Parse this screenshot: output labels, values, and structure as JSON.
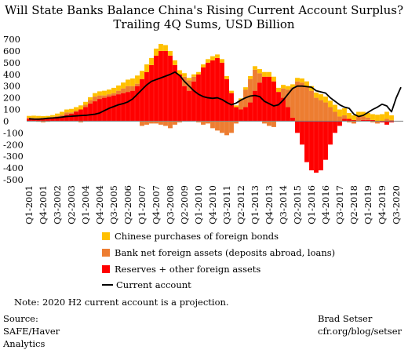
{
  "chart_data": {
    "type": "bar",
    "title": "Will State Banks Balance China's Rising Current Account Surplus?",
    "subtitle": "Trailing 4Q Sums, USD Billion",
    "ylim": [
      -500,
      700
    ],
    "yticks": [
      700,
      600,
      500,
      400,
      300,
      200,
      100,
      0,
      -100,
      -200,
      -300,
      -400,
      -500
    ],
    "xtick_labels": [
      "Q1-2001",
      "Q4-2001",
      "Q3-2002",
      "Q2-2003",
      "Q1-2004",
      "Q4-2004",
      "Q3-2005",
      "Q2-2006",
      "Q1-2007",
      "Q4-2007",
      "Q3-2008",
      "Q2-2009",
      "Q1-2010",
      "Q4-2010",
      "Q3-2011",
      "Q2-2012",
      "Q1-2013",
      "Q4-2013",
      "Q3-2014",
      "Q2-2015",
      "Q1-2016",
      "Q4-2016",
      "Q3-2017",
      "Q2-2018",
      "Q1-2019",
      "Q4-2019",
      "Q3-2020"
    ],
    "categories": [
      "Q1-2001",
      "Q2-2001",
      "Q3-2001",
      "Q4-2001",
      "Q1-2002",
      "Q2-2002",
      "Q3-2002",
      "Q4-2002",
      "Q1-2003",
      "Q2-2003",
      "Q3-2003",
      "Q4-2003",
      "Q1-2004",
      "Q2-2004",
      "Q3-2004",
      "Q4-2004",
      "Q1-2005",
      "Q2-2005",
      "Q3-2005",
      "Q4-2005",
      "Q1-2006",
      "Q2-2006",
      "Q3-2006",
      "Q4-2006",
      "Q1-2007",
      "Q2-2007",
      "Q3-2007",
      "Q4-2007",
      "Q1-2008",
      "Q2-2008",
      "Q3-2008",
      "Q4-2008",
      "Q1-2009",
      "Q2-2009",
      "Q3-2009",
      "Q4-2009",
      "Q1-2010",
      "Q2-2010",
      "Q3-2010",
      "Q4-2010",
      "Q1-2011",
      "Q2-2011",
      "Q3-2011",
      "Q4-2011",
      "Q1-2012",
      "Q2-2012",
      "Q3-2012",
      "Q4-2012",
      "Q1-2013",
      "Q2-2013",
      "Q3-2013",
      "Q4-2013",
      "Q1-2014",
      "Q2-2014",
      "Q3-2014",
      "Q4-2014",
      "Q1-2015",
      "Q2-2015",
      "Q3-2015",
      "Q4-2015",
      "Q1-2016",
      "Q2-2016",
      "Q3-2016",
      "Q4-2016",
      "Q1-2017",
      "Q2-2017",
      "Q3-2017",
      "Q4-2017",
      "Q1-2018",
      "Q2-2018",
      "Q3-2018",
      "Q4-2018",
      "Q1-2019",
      "Q2-2019",
      "Q3-2019",
      "Q4-2019",
      "Q1-2020",
      "Q2-2020",
      "Q3-2020",
      "Q4-2020"
    ],
    "series": [
      {
        "name": "Reserves + other foreign assets",
        "kind": "bar",
        "color": "#ff0000",
        "values": [
          20,
          22,
          25,
          28,
          30,
          32,
          35,
          40,
          55,
          65,
          80,
          100,
          120,
          150,
          170,
          190,
          200,
          210,
          220,
          230,
          240,
          250,
          260,
          300,
          360,
          420,
          480,
          560,
          600,
          600,
          560,
          480,
          400,
          300,
          260,
          340,
          400,
          460,
          500,
          520,
          540,
          500,
          360,
          240,
          120,
          100,
          120,
          160,
          260,
          330,
          380,
          380,
          340,
          250,
          200,
          120,
          30,
          -100,
          -200,
          -350,
          -420,
          -440,
          -420,
          -330,
          -200,
          -100,
          -40,
          20,
          20,
          10,
          0,
          10,
          10,
          10,
          0,
          -10,
          -30,
          -10,
          0,
          0
        ]
      },
      {
        "name": "Bank net foreign assets (deposits abroad, loans)",
        "kind": "bar",
        "color": "#ed7d31",
        "values": [
          10,
          5,
          -5,
          -10,
          -5,
          5,
          10,
          15,
          20,
          10,
          10,
          -10,
          20,
          30,
          40,
          30,
          20,
          20,
          20,
          30,
          40,
          50,
          40,
          20,
          -40,
          -30,
          -20,
          -20,
          -30,
          -40,
          -60,
          -30,
          -10,
          80,
          90,
          40,
          -10,
          -30,
          -20,
          -60,
          -80,
          -100,
          -120,
          -100,
          -20,
          80,
          150,
          200,
          180,
          80,
          -20,
          -40,
          -50,
          0,
          80,
          150,
          260,
          340,
          330,
          300,
          260,
          200,
          180,
          160,
          120,
          80,
          40,
          30,
          -10,
          -20,
          40,
          30,
          20,
          -10,
          -20,
          0,
          20,
          10,
          0,
          0
        ]
      },
      {
        "name": "Chinese purchases of foreign bonds",
        "kind": "bar",
        "color": "#ffc000",
        "values": [
          15,
          20,
          20,
          15,
          15,
          15,
          20,
          25,
          25,
          30,
          30,
          35,
          25,
          25,
          30,
          35,
          40,
          40,
          45,
          45,
          50,
          55,
          65,
          70,
          70,
          65,
          60,
          60,
          60,
          50,
          40,
          40,
          35,
          30,
          20,
          20,
          20,
          25,
          30,
          35,
          30,
          30,
          25,
          20,
          15,
          15,
          20,
          25,
          30,
          35,
          40,
          40,
          40,
          35,
          30,
          30,
          25,
          30,
          35,
          40,
          40,
          45,
          50,
          50,
          55,
          60,
          60,
          60,
          50,
          40,
          40,
          40,
          40,
          50,
          55,
          60,
          60,
          40,
          0,
          0
        ]
      },
      {
        "name": "Current account",
        "kind": "line",
        "color": "#000000",
        "values": [
          20,
          18,
          17,
          20,
          25,
          27,
          30,
          35,
          40,
          42,
          45,
          48,
          50,
          55,
          60,
          70,
          90,
          110,
          125,
          140,
          150,
          165,
          190,
          230,
          270,
          310,
          340,
          355,
          370,
          385,
          400,
          420,
          390,
          340,
          300,
          260,
          230,
          210,
          200,
          195,
          200,
          185,
          160,
          140,
          155,
          180,
          200,
          215,
          220,
          210,
          170,
          150,
          130,
          140,
          180,
          230,
          280,
          300,
          300,
          295,
          290,
          260,
          250,
          240,
          200,
          170,
          140,
          120,
          110,
          60,
          40,
          50,
          75,
          100,
          120,
          145,
          130,
          80,
          200,
          290
        ]
      }
    ]
  },
  "note": "Note: 2020 H2 current account  is a projection.",
  "source": "Source: SAFE/Haver Analytics",
  "credit_name": "Brad Setser",
  "credit_url": "cfr.org/blog/setser"
}
